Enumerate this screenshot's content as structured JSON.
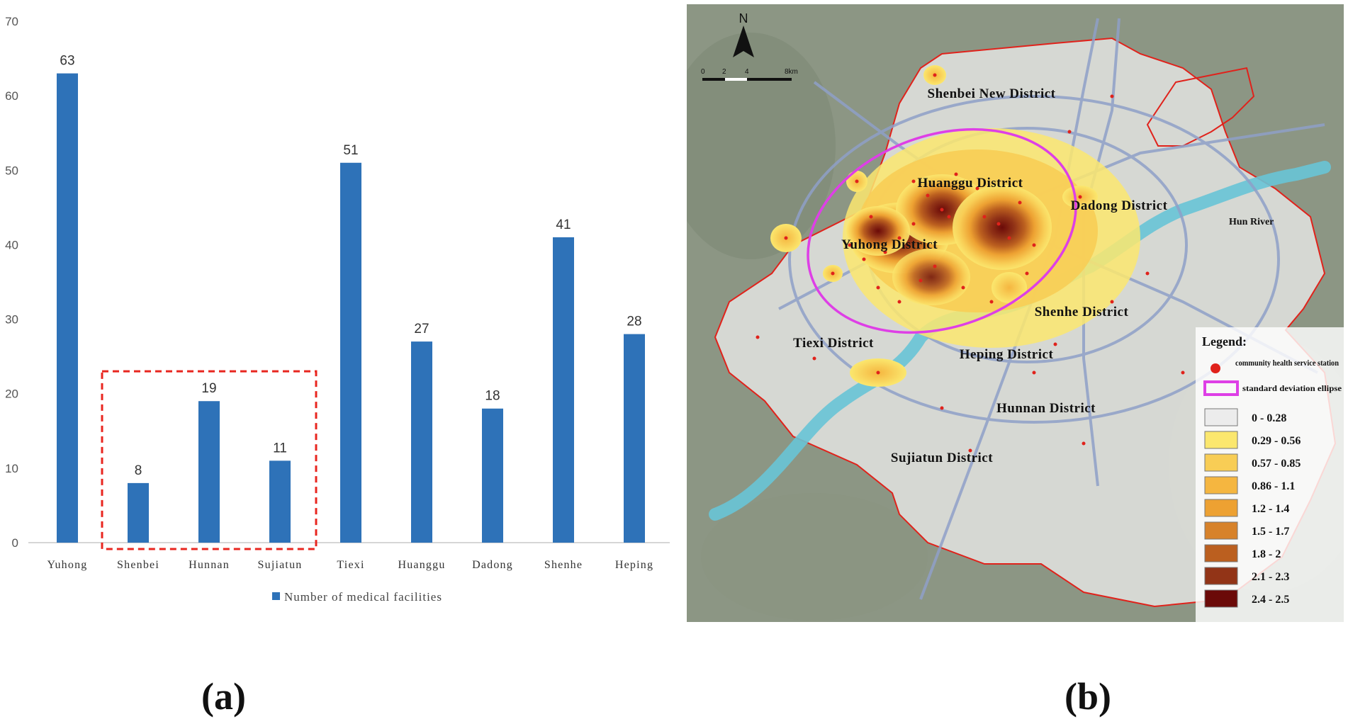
{
  "chart_data": {
    "type": "bar",
    "categories": [
      "Yuhong",
      "Shenbei",
      "Hunnan",
      "Sujiatun",
      "Tiexi",
      "Huanggu",
      "Dadong",
      "Shenhe",
      "Heping"
    ],
    "series": [
      {
        "name": "Number of medical facilities",
        "values": [
          63,
          8,
          19,
          11,
          51,
          27,
          18,
          41,
          28
        ]
      }
    ],
    "ylim": [
      0,
      70
    ],
    "yticks": [
      0,
      10,
      20,
      30,
      40,
      50,
      60,
      70
    ],
    "grid": false,
    "legend": "bottom",
    "highlight_box": {
      "categories": [
        "Shenbei",
        "Hunnan",
        "Sujiatun"
      ],
      "style": "dashed",
      "color": "#e8261f"
    },
    "bar_color": "#2e72b8"
  },
  "map": {
    "north_label": "N",
    "scale_ticks": [
      "0",
      "2",
      "4",
      "8km"
    ],
    "districts": [
      "Shenbei New District",
      "Huanggu District",
      "Dadong District",
      "Yuhong District",
      "Shenhe District",
      "Tiexi District",
      "Heping District",
      "Hunnan District",
      "Sujiatun District"
    ],
    "river_label": "Hun River",
    "legend": {
      "title": "Legend:",
      "point_label": "community health service station",
      "ellipse_label": "standard deviation ellipse",
      "classes": [
        {
          "label": "0 - 0.28",
          "color": "#ececec"
        },
        {
          "label": "0.29 - 0.56",
          "color": "#fbe76e"
        },
        {
          "label": "0.57 - 0.85",
          "color": "#f8cd55"
        },
        {
          "label": "0.86 - 1.1",
          "color": "#f5b640"
        },
        {
          "label": "1.2 - 1.4",
          "color": "#eda132"
        },
        {
          "label": "1.5 - 1.7",
          "color": "#d7822a"
        },
        {
          "label": "1.8 - 2",
          "color": "#bb5f1f"
        },
        {
          "label": "2.1 - 2.3",
          "color": "#923417"
        },
        {
          "label": "2.4 - 2.5",
          "color": "#6b0a08"
        }
      ]
    }
  },
  "panel_labels": {
    "a": "(a)",
    "b": "(b)"
  }
}
